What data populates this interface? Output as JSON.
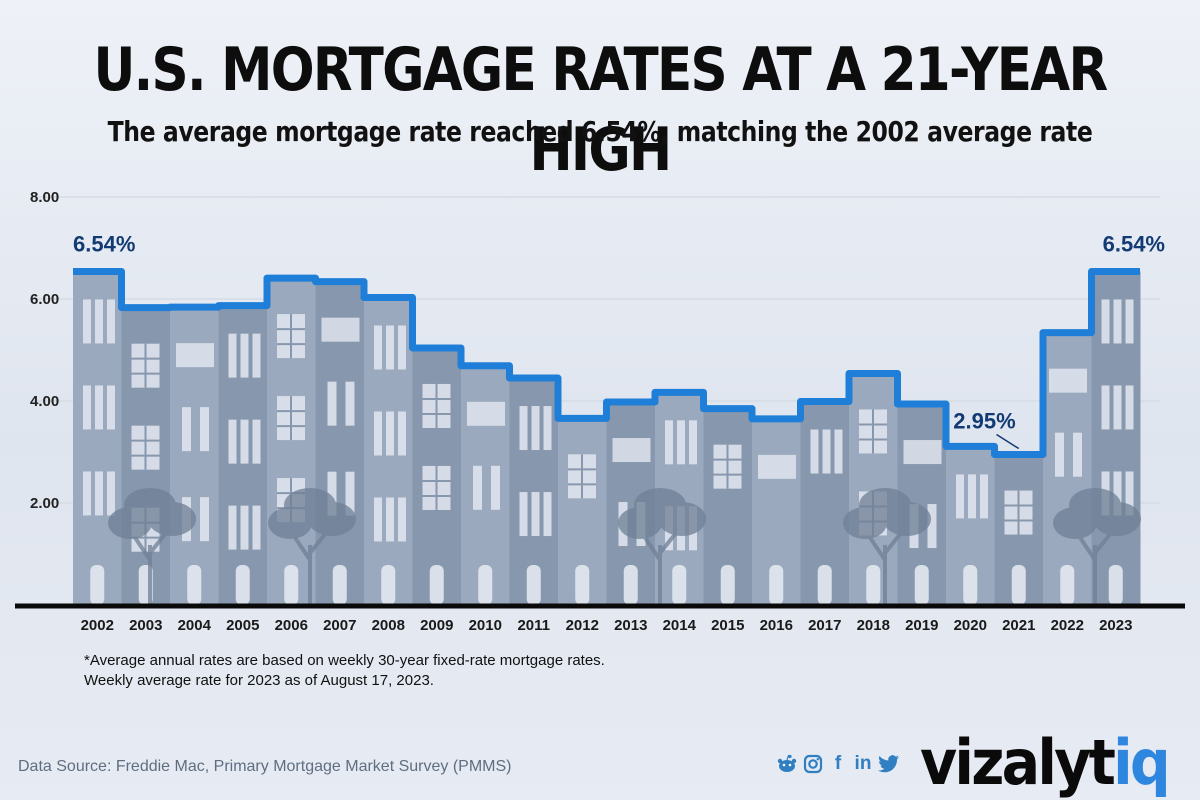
{
  "title": "U.S. MORTGAGE RATES AT A 21-YEAR HIGH",
  "subtitle": "The average mortgage rate reached 6.54%, matching the 2002 average rate",
  "chart_data": {
    "type": "bar",
    "title": "U.S. MORTGAGE RATES AT A 21-YEAR HIGH",
    "xlabel": "",
    "ylabel": "",
    "ylim": [
      0,
      8
    ],
    "ytick_labels": [
      "2.00",
      "4.00",
      "6.00",
      "8.00"
    ],
    "grid": true,
    "categories": [
      "2002",
      "2003",
      "2004",
      "2005",
      "2006",
      "2007",
      "2008",
      "2009",
      "2010",
      "2011",
      "2012",
      "2013",
      "2014",
      "2015",
      "2016",
      "2017",
      "2018",
      "2019",
      "2020",
      "2021",
      "2022",
      "2023"
    ],
    "values": [
      6.54,
      5.83,
      5.84,
      5.87,
      6.41,
      6.34,
      6.03,
      5.04,
      4.69,
      4.45,
      3.66,
      3.98,
      4.17,
      3.85,
      3.65,
      3.99,
      4.54,
      3.94,
      3.11,
      2.95,
      5.34,
      6.54
    ],
    "annotations": [
      {
        "category": "2002",
        "label": "6.54%"
      },
      {
        "category": "2021",
        "label": "2.95%"
      },
      {
        "category": "2023",
        "label": "6.54%"
      }
    ]
  },
  "footnote": {
    "line1": "*Average annual rates are based on weekly 30-year fixed-rate mortgage rates.",
    "line2": "Weekly average rate for 2023 as of August 17, 2023."
  },
  "source": "Data Source: Freddie Mac, Primary Mortgage Market Survey (PMMS)",
  "social": {
    "facebook": "f",
    "linkedin": "in"
  },
  "brand": {
    "main": "vizalyt",
    "highlight": "iq",
    "accent_color": "#2e86de"
  },
  "colors": {
    "line": "#1f7fd8",
    "building": "#9aa9bd",
    "building_dark": "#8797ad",
    "window": "#e3e8f1",
    "tree": "#6f7f95",
    "label": "#123a73"
  }
}
